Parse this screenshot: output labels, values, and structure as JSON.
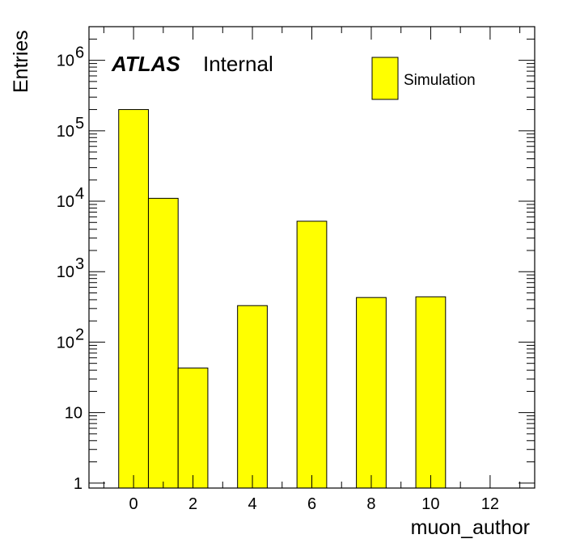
{
  "chart_data": {
    "type": "bar",
    "histogram": true,
    "bin_edges": [
      -0.5,
      0.5,
      1.5,
      2.5,
      3.5,
      4.5,
      5.5,
      6.5,
      7.5,
      8.5,
      9.5,
      10.5,
      11.5,
      12.5
    ],
    "values": [
      200000,
      11000,
      43,
      0,
      330,
      0,
      5200,
      0,
      430,
      0,
      440,
      0,
      0
    ],
    "xlabel": "muon_author",
    "ylabel": "Entries",
    "xlim": [
      -1.5,
      13.5
    ],
    "ylim": [
      0.85,
      3000000
    ],
    "log_y": true,
    "x_ticks": [
      "0",
      "2",
      "4",
      "6",
      "8",
      "10",
      "12"
    ],
    "y_ticks": [
      {
        "base": "1",
        "exp": ""
      },
      {
        "base": "10",
        "exp": ""
      },
      {
        "base": "10",
        "exp": "2"
      },
      {
        "base": "10",
        "exp": "3"
      },
      {
        "base": "10",
        "exp": "4"
      },
      {
        "base": "10",
        "exp": "5"
      },
      {
        "base": "10",
        "exp": "6"
      }
    ],
    "label_bold": "ATLAS",
    "label_normal": "Internal",
    "legend": {
      "entries": [
        "Simulation"
      ],
      "placement": "top-right"
    },
    "colors": {
      "fill": "#ffff00",
      "stroke": "#000000"
    },
    "grid": false
  }
}
